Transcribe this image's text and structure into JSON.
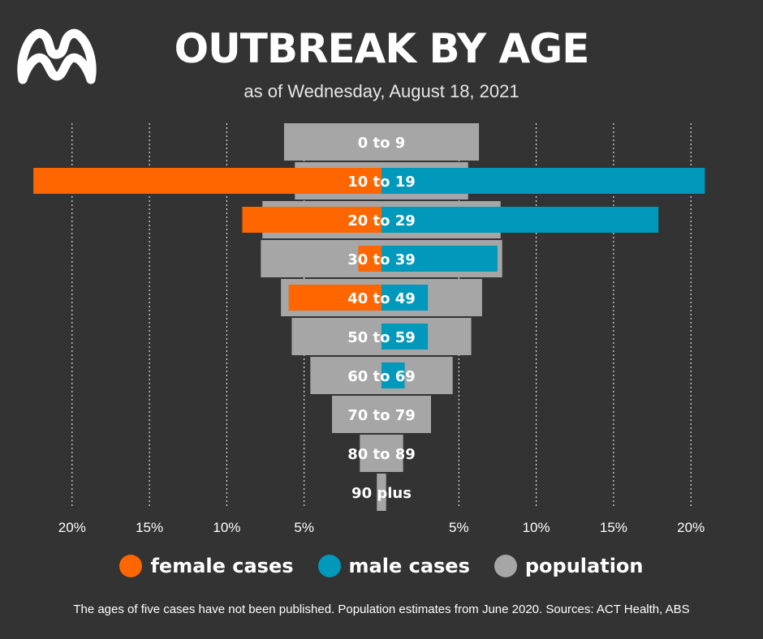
{
  "title": "OUTBREAK BY AGE",
  "subtitle": "as of Wednesday, August 18, 2021",
  "footnote": "The ages of five cases have not been published. Population estimates from June 2020. Sources: ACT Health, ABS",
  "colors": {
    "background": "#333333",
    "female": "#ff6600",
    "male": "#0099bb",
    "population": "#a6a6a6",
    "gridline": "#ffffff"
  },
  "legend": [
    {
      "key": "female",
      "label": "female cases",
      "color": "#ff6600"
    },
    {
      "key": "male",
      "label": "male cases",
      "color": "#0099bb"
    },
    {
      "key": "population",
      "label": "population",
      "color": "#a6a6a6"
    }
  ],
  "chart_data": {
    "type": "bar",
    "orientation": "horizontal",
    "layout": "population-pyramid",
    "categories": [
      "0 to 9",
      "10 to 19",
      "20 to 29",
      "30 to 39",
      "40 to 49",
      "50 to 59",
      "60 to 69",
      "70 to 79",
      "80 to 89",
      "90 plus"
    ],
    "series": [
      {
        "name": "female cases",
        "side": "left",
        "values": [
          0,
          22.5,
          9.0,
          1.5,
          6.0,
          0,
          0,
          0,
          0,
          0
        ]
      },
      {
        "name": "male cases",
        "side": "right",
        "values": [
          0,
          20.9,
          17.9,
          7.5,
          3.0,
          3.0,
          1.5,
          0,
          0,
          0
        ]
      },
      {
        "name": "population",
        "side": "both",
        "values": [
          6.3,
          5.6,
          7.7,
          7.8,
          6.5,
          5.8,
          4.6,
          3.2,
          1.4,
          0.3
        ]
      }
    ],
    "xlim": [
      -22.5,
      21
    ],
    "ticks": [
      {
        "value": -20,
        "label": "20%"
      },
      {
        "value": -15,
        "label": "15%"
      },
      {
        "value": -10,
        "label": "10%"
      },
      {
        "value": -5,
        "label": "5%"
      },
      {
        "value": 5,
        "label": "5%"
      },
      {
        "value": 10,
        "label": "10%"
      },
      {
        "value": 15,
        "label": "15%"
      },
      {
        "value": 20,
        "label": "20%"
      }
    ],
    "grid": true,
    "legend_position": "bottom"
  }
}
